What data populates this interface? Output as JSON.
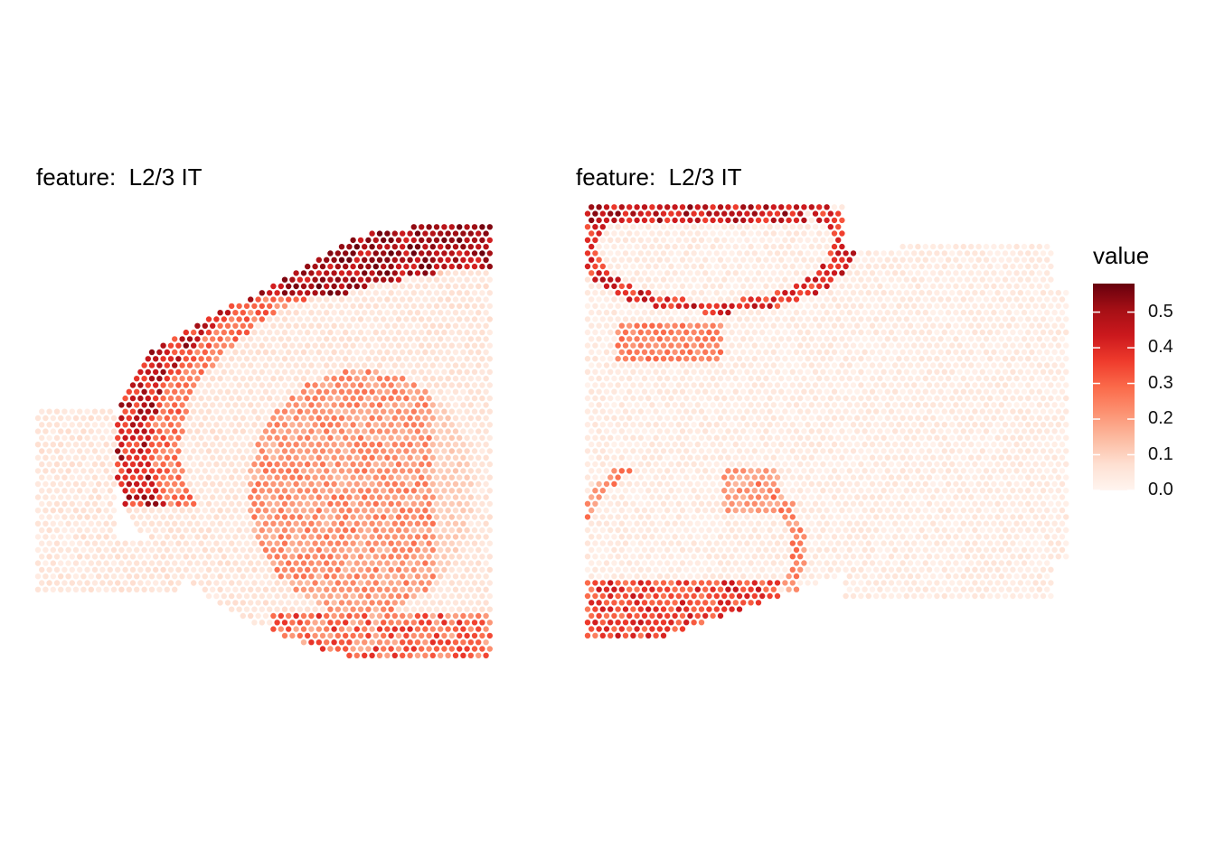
{
  "chart_data": [
    {
      "type": "heatmap",
      "title": "feature:  L2/3 IT",
      "xlabel": "",
      "ylabel": "",
      "grid": false,
      "note": "spatial spot map (hexagonal spots), left tissue section"
    },
    {
      "type": "heatmap",
      "title": "feature:  L2/3 IT",
      "xlabel": "",
      "ylabel": "",
      "grid": false,
      "note": "spatial spot map (hexagonal spots), right tissue section"
    }
  ],
  "legend": {
    "title": "value",
    "placement": "right",
    "range": [
      0.0,
      0.58
    ],
    "ticks": [
      "0.0",
      "0.1",
      "0.2",
      "0.3",
      "0.4",
      "0.5"
    ],
    "tick_values": [
      0.0,
      0.1,
      0.2,
      0.3,
      0.4,
      0.5
    ],
    "colors": [
      "#fff5f0",
      "#fee0d2",
      "#fcbba1",
      "#fc9272",
      "#fb6a4a",
      "#ef3b2c",
      "#cb181d",
      "#a50f15",
      "#67000d"
    ]
  }
}
